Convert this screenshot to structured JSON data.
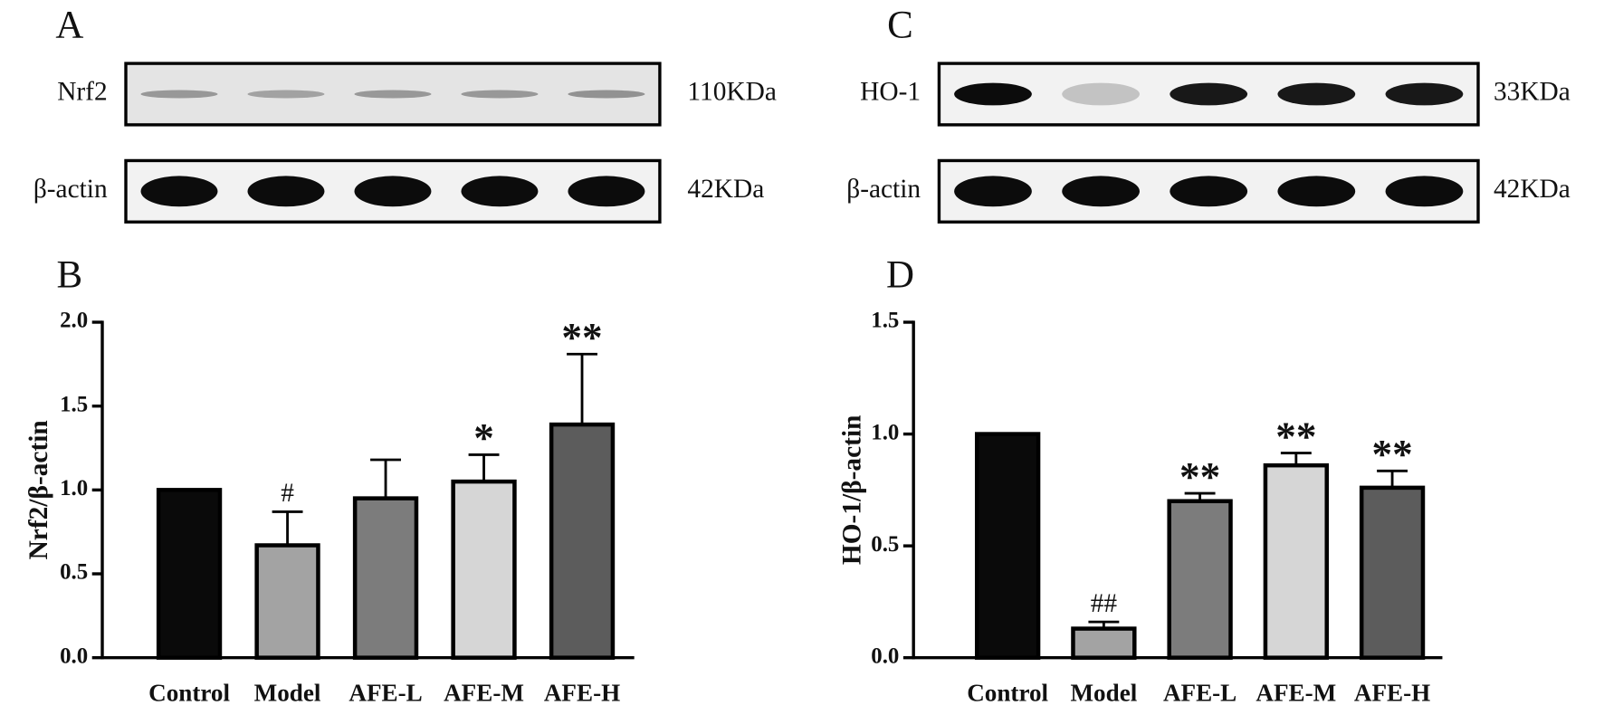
{
  "blots": [
    {
      "panel": "A",
      "rows": [
        {
          "protein": "Nrf2",
          "size": "110KDa"
        },
        {
          "protein": "β-actin",
          "size": "42KDa"
        }
      ]
    },
    {
      "panel": "C",
      "rows": [
        {
          "protein": "HO-1",
          "size": "33KDa"
        },
        {
          "protein": "β-actin",
          "size": "42KDa"
        }
      ]
    }
  ],
  "chart_data": [
    {
      "type": "bar",
      "panel": "B",
      "y_label": "Nrf2/β-actin",
      "categories": [
        "Control",
        "Model",
        "AFE-L",
        "AFE-M",
        "AFE-H"
      ],
      "values": [
        1.0,
        0.67,
        0.95,
        1.05,
        1.39
      ],
      "errors": [
        null,
        0.2,
        0.23,
        0.16,
        0.42
      ],
      "annotations": [
        null,
        "#",
        null,
        "*",
        "**"
      ],
      "colors": [
        "#0a0a0a",
        "#a3a3a3",
        "#7c7c7c",
        "#d6d6d6",
        "#5c5c5c"
      ],
      "ylim": [
        0,
        2.0
      ],
      "yticks": [
        {
          "value": 0,
          "label": "0.0"
        },
        0.5,
        {
          "value": 1,
          "label": "1.0"
        },
        1.5,
        {
          "value": 2,
          "label": "2.0"
        }
      ]
    },
    {
      "type": "bar",
      "panel": "D",
      "y_label": "HO-1/β-actin",
      "categories": [
        "Control",
        "Model",
        "AFE-L",
        "AFE-M",
        "AFE-H"
      ],
      "values": [
        1.0,
        0.13,
        0.7,
        0.86,
        0.76
      ],
      "errors": [
        null,
        0.03,
        0.035,
        0.055,
        0.075
      ],
      "annotations": [
        null,
        "##",
        "**",
        "**",
        "**"
      ],
      "colors": [
        "#0a0a0a",
        "#a3a3a3",
        "#7c7c7c",
        "#d6d6d6",
        "#5c5c5c"
      ],
      "ylim": [
        0,
        1.5
      ],
      "yticks": [
        {
          "value": 0,
          "label": "0.0"
        },
        0.5,
        {
          "value": 1,
          "label": "1.0"
        },
        1.5
      ]
    }
  ]
}
